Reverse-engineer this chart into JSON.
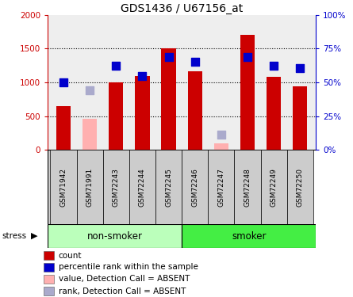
{
  "title": "GDS1436 / U67156_at",
  "samples": [
    "GSM71942",
    "GSM71991",
    "GSM72243",
    "GSM72244",
    "GSM72245",
    "GSM72246",
    "GSM72247",
    "GSM72248",
    "GSM72249",
    "GSM72250"
  ],
  "red_values": [
    650,
    null,
    1000,
    1100,
    1500,
    1160,
    null,
    1700,
    1080,
    940
  ],
  "pink_values": [
    null,
    460,
    null,
    null,
    null,
    null,
    100,
    null,
    null,
    null
  ],
  "blue_values": [
    1000,
    null,
    1250,
    1100,
    1370,
    1300,
    null,
    1370,
    1250,
    1210
  ],
  "lavender_values": [
    null,
    880,
    null,
    null,
    null,
    null,
    230,
    null,
    null,
    null
  ],
  "absent": [
    false,
    true,
    false,
    false,
    false,
    false,
    true,
    false,
    false,
    false
  ],
  "ylim_left": [
    0,
    2000
  ],
  "ylim_right": [
    0,
    100
  ],
  "yticks_left": [
    0,
    500,
    1000,
    1500,
    2000
  ],
  "ytick_labels_left": [
    "0",
    "500",
    "1000",
    "1500",
    "2000"
  ],
  "ytick_labels_right": [
    "0%",
    "25%",
    "50%",
    "75%",
    "100%"
  ],
  "red_color": "#cc0000",
  "pink_color": "#ffb0b0",
  "blue_color": "#0000cc",
  "lavender_color": "#aaaacc",
  "nonsmoker_color": "#bbffbb",
  "smoker_color": "#44ee44",
  "bar_width": 0.55,
  "dot_size": 45,
  "plot_bg_color": "#eeeeee",
  "legend_items": [
    [
      "#cc0000",
      "count"
    ],
    [
      "#0000cc",
      "percentile rank within the sample"
    ],
    [
      "#ffb0b0",
      "value, Detection Call = ABSENT"
    ],
    [
      "#aaaacc",
      "rank, Detection Call = ABSENT"
    ]
  ]
}
